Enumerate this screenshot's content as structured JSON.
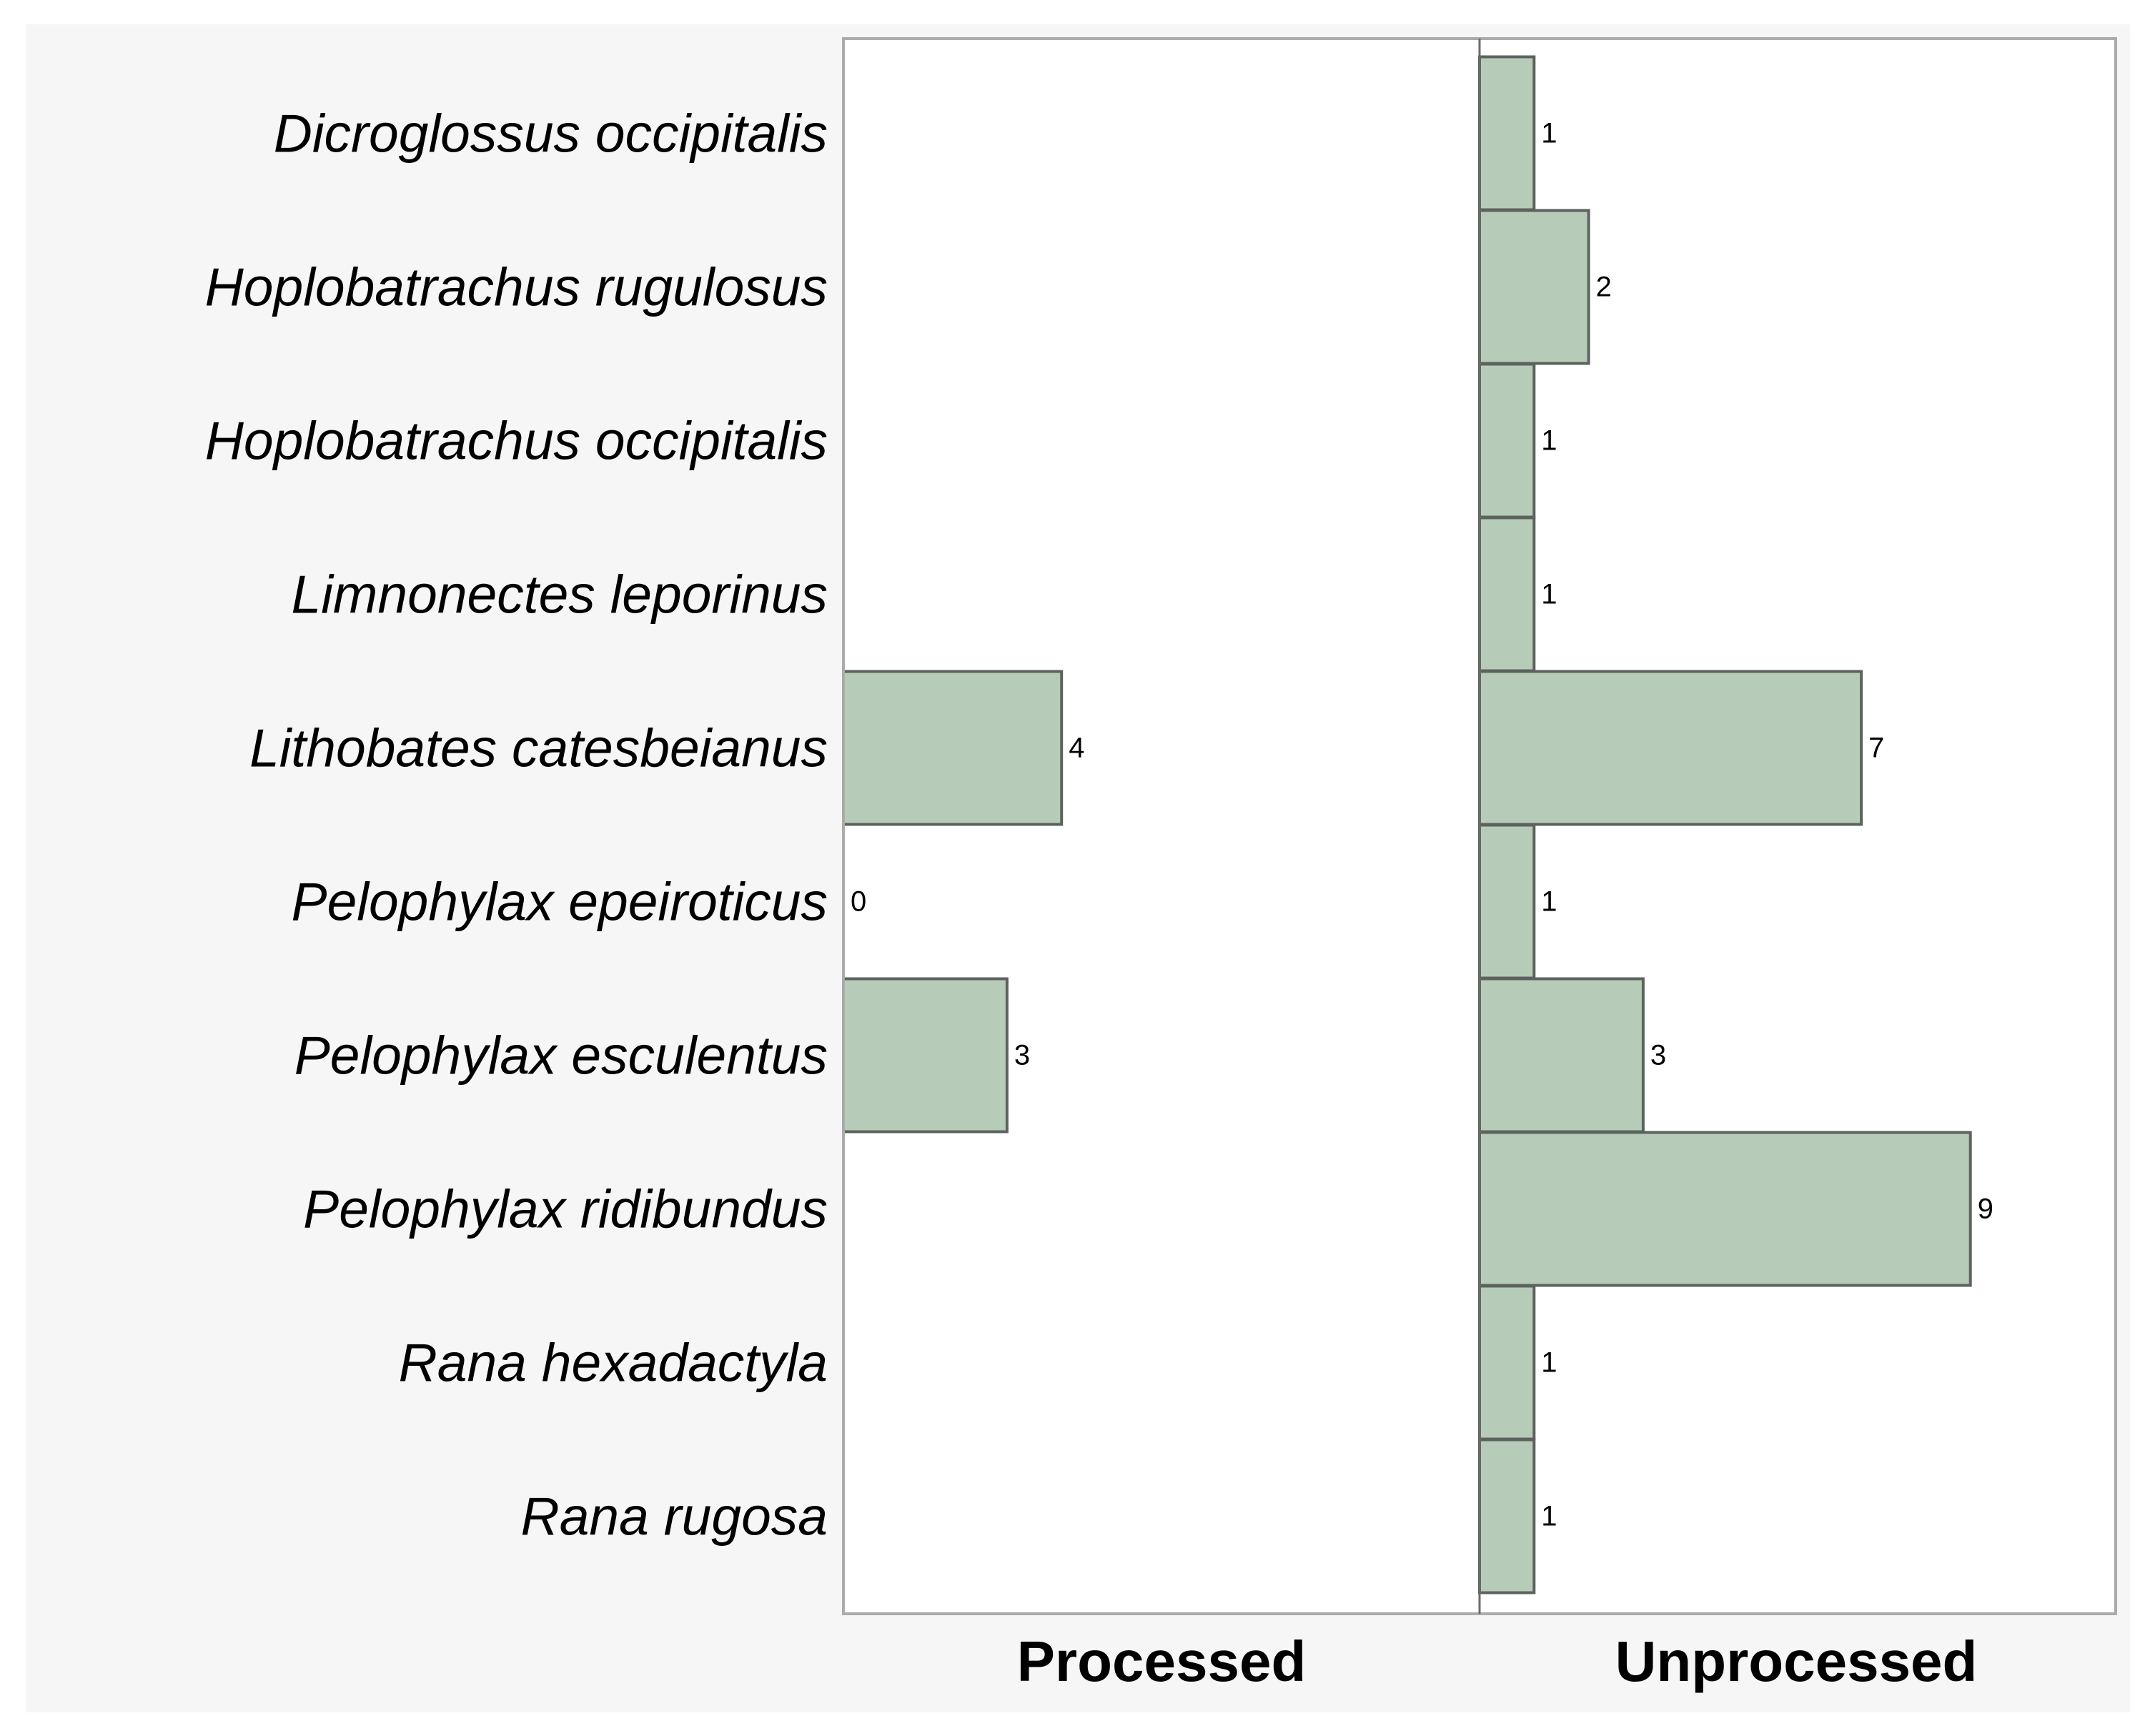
{
  "chart_data": {
    "type": "bar",
    "orientation": "horizontal",
    "layout": "small-multiples",
    "categories": [
      "Dicroglossus occipitalis",
      "Hoplobatrachus rugulosus",
      "Hoplobatrachus occipitalis",
      "Limnonectes leporinus",
      "Lithobates catesbeianus",
      "Pelophylax epeiroticus",
      "Pelophylax esculentus",
      "Pelophylax ridibundus",
      "Rana hexadactyla",
      "Rana rugosa"
    ],
    "series": [
      {
        "name": "Processed",
        "values": [
          null,
          null,
          null,
          null,
          4,
          0,
          3,
          null,
          null,
          null
        ],
        "labels": [
          "",
          "",
          "",
          "",
          "4",
          "0",
          "3",
          "",
          "",
          ""
        ]
      },
      {
        "name": "Unprocessed",
        "values": [
          1,
          2,
          1,
          1,
          7,
          1,
          3,
          9,
          1,
          1
        ],
        "labels": [
          "1",
          "2",
          "1",
          "1",
          "7",
          "1",
          "3",
          "9",
          "1",
          "1"
        ]
      }
    ],
    "xlim": [
      0,
      11.7
    ],
    "grid": false,
    "legend": "none",
    "colors": {
      "bar_fill": "#b7cbb9",
      "bar_stroke": "#5c635e",
      "panel_border": "#a9aca9",
      "divider": "#6b6b6b",
      "background": "#f6f6f6",
      "plot_background": "#ffffff",
      "text": "#000000"
    }
  }
}
